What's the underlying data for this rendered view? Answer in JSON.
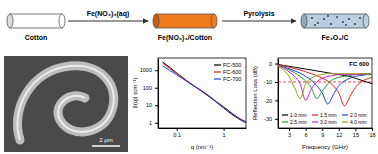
{
  "scheme": {
    "steps": [
      {
        "label": "Cotton"
      },
      {
        "label": "Fe(NO₃)₃/Cotton"
      },
      {
        "label": "Fe₃O₄/C"
      }
    ],
    "arrows": [
      {
        "label": "Fe(NO₃)₃(aq)"
      },
      {
        "label": "Pyrolysis"
      }
    ]
  },
  "sem_image": {
    "scale_bar": "2 μm"
  },
  "chart_data": [
    {
      "type": "line",
      "x_label": "q (nm⁻¹)",
      "y_label": "|I(q)| (cm⁻¹)",
      "log": true,
      "x": [
        0.05,
        0.07,
        0.1,
        0.15,
        0.2,
        0.3,
        0.5,
        0.7,
        1,
        1.5,
        2,
        3
      ],
      "xlim": [
        0.04,
        3
      ],
      "xticks": [
        0.1,
        1
      ],
      "ylim": [
        0.5,
        5000
      ],
      "yticks": [
        1,
        10,
        100,
        1000
      ],
      "legend": "top-right",
      "series": [
        {
          "name": "FC-500",
          "color": "#000000",
          "values": [
            3000,
            1500,
            700,
            300,
            170,
            80,
            30,
            15,
            7,
            3,
            1.8,
            1
          ]
        },
        {
          "name": "FC-600",
          "color": "#e0201b",
          "values": [
            2500,
            1300,
            650,
            300,
            170,
            85,
            33,
            16,
            8,
            3.5,
            2,
            1.1
          ]
        },
        {
          "name": "FC-700",
          "color": "#1f3fd6",
          "values": [
            1800,
            1000,
            550,
            270,
            160,
            80,
            32,
            16,
            8,
            3.5,
            2,
            1.1
          ]
        }
      ]
    },
    {
      "type": "line",
      "title": "FC 600",
      "x_label": "Frequency (GHz)",
      "y_label": "Reflection Loss (dB)",
      "x": [
        1,
        2,
        3,
        4,
        5,
        6,
        7,
        8,
        9,
        10,
        11,
        12,
        13,
        14,
        15,
        16,
        17,
        18
      ],
      "xlim": [
        1,
        18
      ],
      "xticks": [
        3,
        6,
        9,
        12,
        15,
        18
      ],
      "ylim": [
        -35,
        3
      ],
      "yticks": [
        0,
        -10,
        -20,
        -30
      ],
      "reference_line": -10,
      "legend": "bottom-right",
      "series": [
        {
          "name": "1.0 mm",
          "color": "#000000",
          "values": [
            -0.5,
            -1,
            -1.5,
            -2,
            -2.5,
            -3,
            -3.5,
            -4,
            -4.5,
            -5,
            -5.5,
            -6,
            -6.5,
            -7,
            -8,
            -9,
            -10,
            -11
          ]
        },
        {
          "name": "1.5 mm",
          "color": "#e0201b",
          "values": [
            -0.7,
            -1.2,
            -2,
            -2.8,
            -3.5,
            -4.5,
            -5.5,
            -6.5,
            -8,
            -9.5,
            -12,
            -16,
            -23,
            -18,
            -13,
            -10,
            -8.5,
            -7.5
          ]
        },
        {
          "name": "2.0 mm",
          "color": "#1f3fd6",
          "values": [
            -1,
            -1.8,
            -2.8,
            -4,
            -5.2,
            -7,
            -9,
            -12,
            -16,
            -22,
            -17,
            -12,
            -9.5,
            -8,
            -7,
            -6.5,
            -6,
            -5.5
          ]
        },
        {
          "name": "2.5 mm",
          "color": "#1a9c2e",
          "values": [
            -1,
            -2,
            -3.5,
            -5,
            -7,
            -9.5,
            -13,
            -19,
            -15,
            -11,
            -8.5,
            -7.5,
            -7,
            -6.5,
            -6,
            -6,
            -6,
            -6
          ]
        },
        {
          "name": "3.0 mm",
          "color": "#d01fd0",
          "values": [
            -1.2,
            -2.5,
            -4.5,
            -7,
            -11,
            -20,
            -14,
            -10,
            -8,
            -7,
            -6.5,
            -6,
            -6,
            -6,
            -6,
            -5.8,
            -5.5,
            -5.5
          ]
        },
        {
          "name": "4.0 mm",
          "color": "#9a9a12",
          "values": [
            -1.5,
            -3.5,
            -7,
            -13,
            -19,
            -11,
            -8,
            -6.5,
            -6,
            -5.5,
            -5.5,
            -5.5,
            -5.5,
            -5.5,
            -5.5,
            -5.5,
            -5.5,
            -5.5
          ]
        }
      ]
    }
  ]
}
